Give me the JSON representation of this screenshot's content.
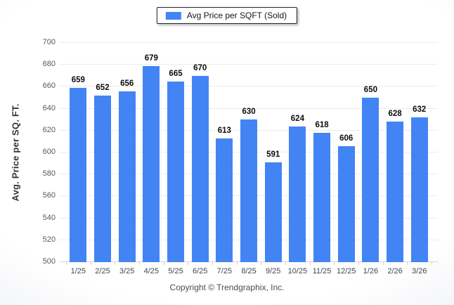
{
  "legend": {
    "label": "Avg Price per SQFT (Sold)",
    "swatch_color": "#4384f5"
  },
  "footer": {
    "copyright": "Copyright © Trendgraphix, Inc."
  },
  "chart_data": {
    "type": "bar",
    "title": "",
    "categories": [
      "1/25",
      "2/25",
      "3/25",
      "4/25",
      "5/25",
      "6/25",
      "7/25",
      "8/25",
      "9/25",
      "10/25",
      "11/25",
      "12/25",
      "1/26",
      "2/26",
      "3/26"
    ],
    "series": [
      {
        "name": "Avg Price per SQFT (Sold)",
        "values": [
          659,
          652,
          656,
          679,
          665,
          670,
          613,
          630,
          591,
          624,
          618,
          606,
          650,
          628,
          632
        ]
      }
    ],
    "xlabel": "",
    "ylabel": "Avg. Price per SQ. FT.",
    "ylim": [
      500,
      700
    ],
    "ytick_step": 20,
    "grid": "horizontal",
    "legend_position": "top-center",
    "bar_color": "#4384f5",
    "value_labels": true
  }
}
